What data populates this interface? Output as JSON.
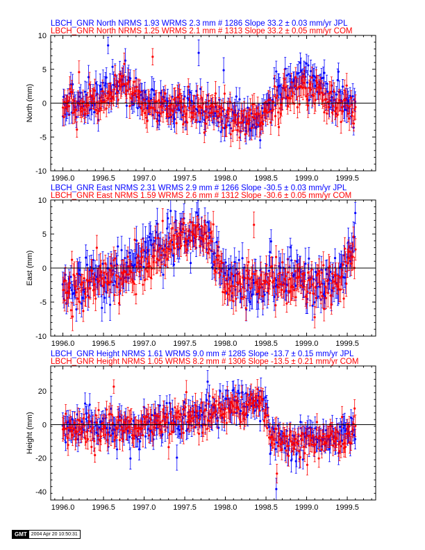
{
  "stamp": {
    "logo": "GMT",
    "text": "2004 Apr 20 10:50:31"
  },
  "colors": {
    "jpl": "#0000ff",
    "com": "#ff0000",
    "axis": "#000000"
  },
  "chart_data": [
    {
      "type": "scatter",
      "component": "North",
      "ylabel": "North (mm)",
      "xlim": [
        1995.85,
        1999.85
      ],
      "ylim": [
        -10,
        10
      ],
      "xticks": [
        1996.0,
        1996.5,
        1997.0,
        1997.5,
        1998.0,
        1998.5,
        1999.0,
        1999.5
      ],
      "xtick_labels": [
        "1996.0",
        "1996.5",
        "1997.0",
        "1997.5",
        "1998.0",
        "1998.5",
        "1999.0",
        "1999.5"
      ],
      "yticks": [
        -10,
        -5,
        0,
        5,
        10
      ],
      "ytick_labels": [
        "-10",
        "-5",
        "0",
        "5",
        "10"
      ],
      "zero_line": true,
      "legend": [
        {
          "text": "LBCH_GNR North NRMS 1.93 WRMS  2.3 mm # 1286 Slope   33.2 ±  0.03 mm/yr JPL",
          "color": "#0000ff"
        },
        {
          "text": "LBCH_GNR North NRMS 1.25 WRMS  2.1 mm # 1313 Slope   33.2 ±  0.05 mm/yr COM",
          "color": "#ff0000"
        }
      ],
      "series": [
        {
          "name": "JPL",
          "color": "#0000ff",
          "n": 1286,
          "wrms": 2.3,
          "error": 1.5,
          "trend_x": [
            1996.0,
            1996.3,
            1996.6,
            1996.75,
            1997.0,
            1997.3,
            1997.6,
            1997.9,
            1998.2,
            1998.4,
            1998.55,
            1998.8,
            1998.95,
            1999.2,
            1999.45,
            1999.6
          ],
          "trend_y": [
            -0.5,
            0.5,
            2.0,
            3.0,
            0.5,
            -0.5,
            -0.5,
            -1.5,
            -3.0,
            -2.5,
            0.0,
            3.0,
            4.0,
            2.0,
            1.0,
            -0.5
          ]
        },
        {
          "name": "COM",
          "color": "#ff0000",
          "n": 1313,
          "wrms": 2.1,
          "error": 1.4,
          "trend_x": [
            1996.0,
            1996.3,
            1996.6,
            1996.75,
            1997.0,
            1997.3,
            1997.6,
            1997.9,
            1998.2,
            1998.4,
            1998.55,
            1998.8,
            1998.95,
            1999.2,
            1999.45,
            1999.6
          ],
          "trend_y": [
            -1.0,
            0.0,
            1.5,
            2.0,
            0.0,
            -0.5,
            -1.0,
            -1.5,
            -2.5,
            -2.0,
            -0.5,
            1.5,
            2.5,
            1.0,
            0.0,
            -1.0
          ]
        }
      ]
    },
    {
      "type": "scatter",
      "component": "East",
      "ylabel": "East (mm)",
      "xlim": [
        1995.85,
        1999.85
      ],
      "ylim": [
        -10,
        10
      ],
      "xticks": [
        1996.0,
        1996.5,
        1997.0,
        1997.5,
        1998.0,
        1998.5,
        1999.0,
        1999.5
      ],
      "xtick_labels": [
        "1996.0",
        "1996.5",
        "1997.0",
        "1997.5",
        "1998.0",
        "1998.5",
        "1999.0",
        "1999.5"
      ],
      "yticks": [
        -10,
        -5,
        0,
        5,
        10
      ],
      "ytick_labels": [
        "-10",
        "-5",
        "0",
        "5",
        "10"
      ],
      "zero_line": true,
      "legend": [
        {
          "text": "LBCH_GNR East NRMS 2.31 WRMS  2.9 mm # 1266 Slope  -30.5 ±  0.03 mm/yr JPL",
          "color": "#0000ff"
        },
        {
          "text": "LBCH_GNR East NRMS 1.59 WRMS  2.6 mm # 1312 Slope  -30.6 ±  0.05 mm/yr COM",
          "color": "#ff0000"
        }
      ],
      "series": [
        {
          "name": "JPL",
          "color": "#0000ff",
          "n": 1266,
          "wrms": 2.9,
          "error": 1.8,
          "trend_x": [
            1996.0,
            1996.3,
            1996.6,
            1996.9,
            1997.2,
            1997.5,
            1997.65,
            1997.8,
            1998.0,
            1998.2,
            1998.6,
            1999.0,
            1999.3,
            1999.5,
            1999.6
          ],
          "trend_y": [
            -3.5,
            -2.0,
            -1.0,
            0.5,
            3.0,
            5.5,
            6.0,
            4.0,
            -1.0,
            -2.5,
            -1.5,
            -2.0,
            -2.5,
            1.5,
            3.0
          ]
        },
        {
          "name": "COM",
          "color": "#ff0000",
          "n": 1312,
          "wrms": 2.6,
          "error": 1.6,
          "trend_x": [
            1996.0,
            1996.3,
            1996.6,
            1996.9,
            1997.2,
            1997.5,
            1997.65,
            1997.8,
            1998.0,
            1998.2,
            1998.6,
            1999.0,
            1999.3,
            1999.5,
            1999.6
          ],
          "trend_y": [
            -4.0,
            -2.5,
            -1.5,
            0.0,
            2.5,
            5.0,
            5.5,
            3.5,
            -1.5,
            -3.0,
            -2.0,
            -2.5,
            -3.0,
            1.0,
            2.5
          ]
        }
      ]
    },
    {
      "type": "scatter",
      "component": "Height",
      "ylabel": "Height (mm)",
      "xlim": [
        1995.85,
        1999.85
      ],
      "ylim": [
        -45,
        35
      ],
      "xticks": [
        1996.0,
        1996.5,
        1997.0,
        1997.5,
        1998.0,
        1998.5,
        1999.0,
        1999.5
      ],
      "xtick_labels": [
        "1996.0",
        "1996.5",
        "1997.0",
        "1997.5",
        "1998.0",
        "1998.5",
        "1999.0",
        "1999.5"
      ],
      "yticks": [
        -40,
        -20,
        0,
        20
      ],
      "ytick_labels": [
        "-40",
        "-20",
        "0",
        "20"
      ],
      "zero_line": true,
      "legend": [
        {
          "text": "LBCH_GNR Height NRMS 1.61 WRMS  9.0 mm # 1285 Slope  -13.7 ±  0.15 mm/yr JPL",
          "color": "#0000ff"
        },
        {
          "text": "LBCH_GNR Height NRMS 1.05 WRMS  8.2 mm # 1306 Slope  -13.5 ±  0.21 mm/yr COM",
          "color": "#ff0000"
        }
      ],
      "series": [
        {
          "name": "JPL",
          "color": "#0000ff",
          "n": 1285,
          "wrms": 9.0,
          "error": 6.0,
          "trend_x": [
            1996.0,
            1996.5,
            1997.0,
            1997.5,
            1997.8,
            1998.0,
            1998.3,
            1998.45,
            1998.55,
            1998.8,
            1999.1,
            1999.4,
            1999.6
          ],
          "trend_y": [
            -3.0,
            -2.0,
            0.0,
            4.0,
            8.0,
            10.0,
            14.0,
            15.0,
            -5.0,
            -12.0,
            -10.0,
            -8.0,
            -2.0
          ]
        },
        {
          "name": "COM",
          "color": "#ff0000",
          "n": 1306,
          "wrms": 8.2,
          "error": 5.5,
          "trend_x": [
            1996.0,
            1996.5,
            1997.0,
            1997.5,
            1997.8,
            1998.0,
            1998.3,
            1998.45,
            1998.55,
            1998.8,
            1999.1,
            1999.4,
            1999.6
          ],
          "trend_y": [
            -4.0,
            -3.0,
            -1.0,
            3.0,
            7.0,
            9.0,
            13.0,
            14.0,
            -6.0,
            -13.0,
            -11.0,
            -9.0,
            -3.0
          ]
        }
      ]
    }
  ]
}
